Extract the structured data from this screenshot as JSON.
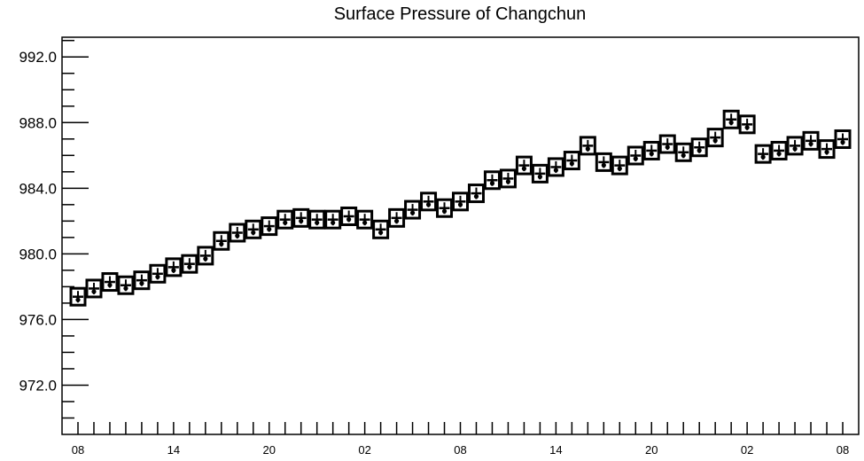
{
  "chart_data": {
    "type": "scatter",
    "title": "Surface Pressure of Changchun",
    "xlabel": "",
    "ylabel": "",
    "ylim": [
      969.0,
      993.2
    ],
    "yticks": [
      "992.0",
      "988.0",
      "984.0",
      "980.0",
      "976.0",
      "972.0"
    ],
    "ytick_values": [
      992,
      988,
      984,
      980,
      976,
      972
    ],
    "xticks": [
      "08",
      "14",
      "20",
      "02",
      "08",
      "14",
      "20",
      "02",
      "08"
    ],
    "xtick_hour_index": [
      0,
      6,
      12,
      18,
      24,
      30,
      36,
      42,
      48
    ],
    "x_hours": [
      "08",
      "09",
      "10",
      "11",
      "12",
      "13",
      "14",
      "15",
      "16",
      "17",
      "18",
      "19",
      "20",
      "21",
      "22",
      "23",
      "00",
      "01",
      "02",
      "03",
      "04",
      "05",
      "06",
      "07",
      "08",
      "09",
      "10",
      "11",
      "12",
      "13",
      "14",
      "15",
      "16",
      "17",
      "18",
      "19",
      "20",
      "21",
      "22",
      "23",
      "00",
      "01",
      "02",
      "03",
      "04",
      "05",
      "06",
      "07",
      "08"
    ],
    "values": [
      977.2,
      977.7,
      978.1,
      977.9,
      978.2,
      978.6,
      979.0,
      979.2,
      979.7,
      980.6,
      981.1,
      981.3,
      981.5,
      981.9,
      982.0,
      981.9,
      981.9,
      982.1,
      981.9,
      981.3,
      982.0,
      982.5,
      983.0,
      982.6,
      983.0,
      983.5,
      984.3,
      984.4,
      985.2,
      984.7,
      985.1,
      985.5,
      986.4,
      985.4,
      985.2,
      985.8,
      986.1,
      986.5,
      986.0,
      986.3,
      986.9,
      988.0,
      987.7,
      985.9,
      986.1,
      986.4,
      986.7,
      986.2,
      986.8
    ],
    "grid": false,
    "marker": "station-model-box"
  }
}
